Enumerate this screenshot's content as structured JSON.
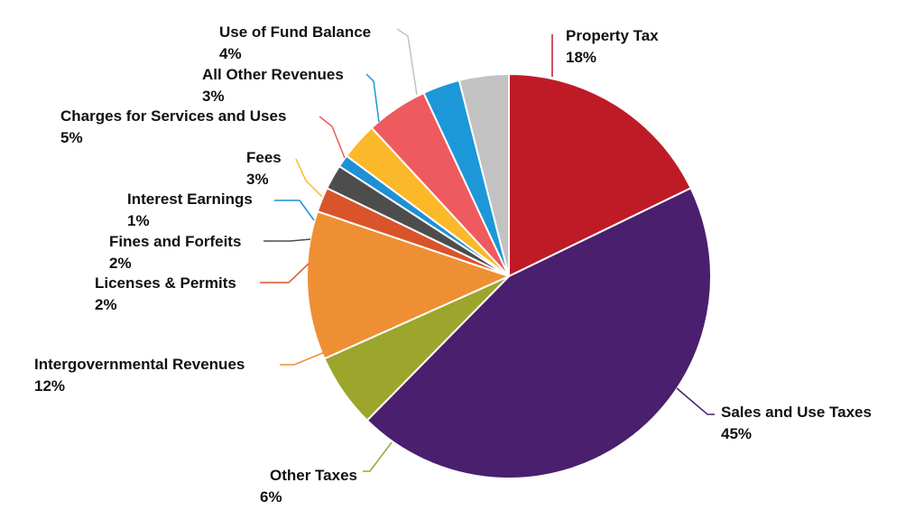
{
  "chart_data": {
    "type": "pie",
    "start_angle_deg": 90,
    "direction": "clockwise",
    "slices": [
      {
        "label": "Property Tax",
        "value": 18,
        "percent_text": "18%",
        "color": "#BE1B27"
      },
      {
        "label": "Sales and Use Taxes",
        "value": 45,
        "percent_text": "45%",
        "color": "#4A1F6E"
      },
      {
        "label": "Other Taxes",
        "value": 6,
        "percent_text": "6%",
        "color": "#9CA62C"
      },
      {
        "label": "Intergovernmental Revenues",
        "value": 12,
        "percent_text": "12%",
        "color": "#EF8F33"
      },
      {
        "label": "Licenses & Permits",
        "value": 2,
        "percent_text": "2%",
        "color": "#D9532B"
      },
      {
        "label": "Fines and Forfeits",
        "value": 2,
        "percent_text": "2%",
        "color": "#4D4D4D"
      },
      {
        "label": "Interest Earnings",
        "value": 1,
        "percent_text": "1%",
        "color": "#1E90D6"
      },
      {
        "label": "Fees",
        "value": 3,
        "percent_text": "3%",
        "color": "#FBB829"
      },
      {
        "label": "Charges for Services and Uses",
        "value": 5,
        "percent_text": "5%",
        "color": "#EE5A5E"
      },
      {
        "label": "All Other Revenues",
        "value": 3,
        "percent_text": "3%",
        "color": "#1C98D8"
      },
      {
        "label": "Use of Fund Balance",
        "value": 4,
        "percent_text": "4%",
        "color": "#C2C2C2"
      }
    ]
  }
}
